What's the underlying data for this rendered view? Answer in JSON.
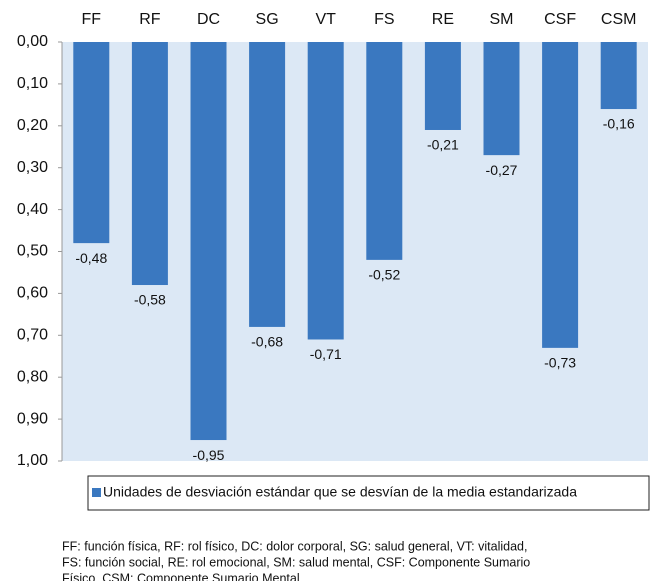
{
  "chart_data": {
    "type": "bar",
    "categories": [
      "FF",
      "RF",
      "DC",
      "SG",
      "VT",
      "FS",
      "RE",
      "SM",
      "CSF",
      "CSM"
    ],
    "series": [
      {
        "name": "Unidades de desviación estándar que se desvían de la media estandarizada",
        "color": "#3a78c0",
        "values": [
          -0.48,
          -0.58,
          -0.95,
          -0.68,
          -0.71,
          -0.52,
          -0.21,
          -0.27,
          -0.73,
          -0.16
        ],
        "value_labels": [
          "-0,48",
          "-0,58",
          "-0,95",
          "-0,68",
          "-0,71",
          "-0,52",
          "-0,21",
          "-0,27",
          "-0,73",
          "-0,16"
        ]
      }
    ],
    "ylim": [
      -1,
      0
    ],
    "yticks": [
      {
        "value": 0,
        "label": "0,00"
      },
      {
        "value": -0.1,
        "label": "0,10"
      },
      {
        "value": -0.2,
        "label": "0,20"
      },
      {
        "value": -0.3,
        "label": "0,30"
      },
      {
        "value": -0.4,
        "label": "0,40"
      },
      {
        "value": -0.5,
        "label": "0,50"
      },
      {
        "value": -0.6,
        "label": "0,60"
      },
      {
        "value": -0.7,
        "label": "0,70"
      },
      {
        "value": -0.8,
        "label": "0,80"
      },
      {
        "value": -0.9,
        "label": "0,90"
      },
      {
        "value": -1,
        "label": "1,00"
      }
    ],
    "plot_background": "#dce8f5",
    "legend": "bottom",
    "footnote": [
      "FF: función física, RF: rol físico, DC: dolor corporal, SG: salud general, VT: vitalidad,",
      "FS: función social, RE: rol emocional, SM: salud mental, CSF: Componente Sumario",
      "Físico, CSM: Componente Sumario Mental."
    ]
  }
}
